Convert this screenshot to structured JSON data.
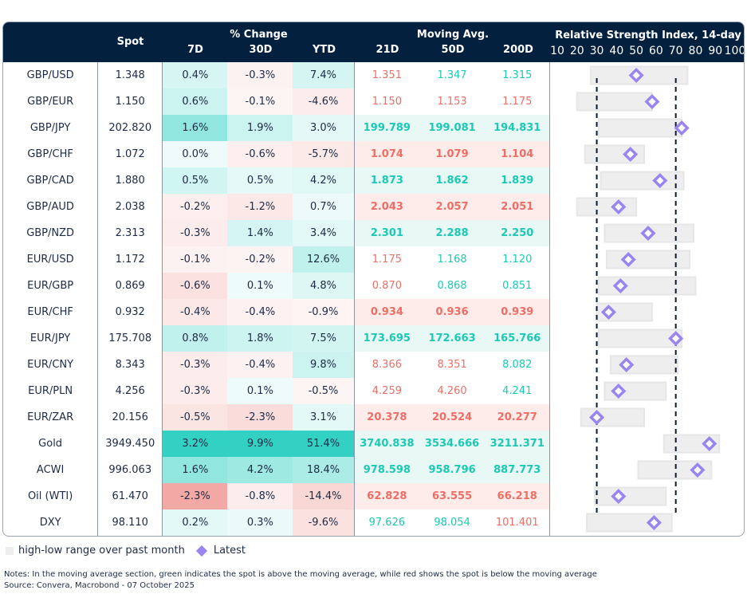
{
  "header": {
    "spot": "Spot",
    "pct_change": "% Change",
    "d7": "7D",
    "d30": "30D",
    "ytd": "YTD",
    "moving_avg": "Moving Avg.",
    "ma21": "21D",
    "ma50": "50D",
    "ma200": "200D",
    "rsi_title": "Relative Strength Index, 14-day"
  },
  "colors": {
    "header_bg": "#04203f",
    "pos": "#33d1c4",
    "neg": "#ee8a84",
    "ma_green": "#1cc9b4",
    "ma_red": "#ee6e66",
    "diamond": "#9a85f0",
    "range": "#eeeeee"
  },
  "rows": [
    {
      "name": "GBP/USD",
      "spot": "1.348",
      "d7": "0.4%",
      "d30": "-0.3%",
      "ytd": "7.4%",
      "ma21": "1.351",
      "ma50": "1.347",
      "ma200": "1.315",
      "bold": false
    },
    {
      "name": "GBP/EUR",
      "spot": "1.150",
      "d7": "0.6%",
      "d30": "-0.1%",
      "ytd": "-4.6%",
      "ma21": "1.150",
      "ma50": "1.153",
      "ma200": "1.175",
      "bold": false
    },
    {
      "name": "GBP/JPY",
      "spot": "202.820",
      "d7": "1.6%",
      "d30": "1.9%",
      "ytd": "3.0%",
      "ma21": "199.789",
      "ma50": "199.081",
      "ma200": "194.831",
      "bold": true
    },
    {
      "name": "GBP/CHF",
      "spot": "1.072",
      "d7": "0.0%",
      "d30": "-0.6%",
      "ytd": "-5.7%",
      "ma21": "1.074",
      "ma50": "1.079",
      "ma200": "1.104",
      "bold": true
    },
    {
      "name": "GBP/CAD",
      "spot": "1.880",
      "d7": "0.5%",
      "d30": "0.5%",
      "ytd": "4.2%",
      "ma21": "1.873",
      "ma50": "1.862",
      "ma200": "1.839",
      "bold": true
    },
    {
      "name": "GBP/AUD",
      "spot": "2.038",
      "d7": "-0.2%",
      "d30": "-1.2%",
      "ytd": "0.7%",
      "ma21": "2.043",
      "ma50": "2.057",
      "ma200": "2.051",
      "bold": true
    },
    {
      "name": "GBP/NZD",
      "spot": "2.313",
      "d7": "-0.3%",
      "d30": "1.4%",
      "ytd": "3.4%",
      "ma21": "2.301",
      "ma50": "2.288",
      "ma200": "2.250",
      "bold": true
    },
    {
      "name": "EUR/USD",
      "spot": "1.172",
      "d7": "-0.1%",
      "d30": "-0.2%",
      "ytd": "12.6%",
      "ma21": "1.175",
      "ma50": "1.168",
      "ma200": "1.120",
      "bold": false
    },
    {
      "name": "EUR/GBP",
      "spot": "0.869",
      "d7": "-0.6%",
      "d30": "0.1%",
      "ytd": "4.8%",
      "ma21": "0.870",
      "ma50": "0.868",
      "ma200": "0.851",
      "bold": false
    },
    {
      "name": "EUR/CHF",
      "spot": "0.932",
      "d7": "-0.4%",
      "d30": "-0.4%",
      "ytd": "-0.9%",
      "ma21": "0.934",
      "ma50": "0.936",
      "ma200": "0.939",
      "bold": true
    },
    {
      "name": "EUR/JPY",
      "spot": "175.708",
      "d7": "0.8%",
      "d30": "1.8%",
      "ytd": "7.5%",
      "ma21": "173.695",
      "ma50": "172.663",
      "ma200": "165.766",
      "bold": true
    },
    {
      "name": "EUR/CNY",
      "spot": "8.343",
      "d7": "-0.3%",
      "d30": "-0.4%",
      "ytd": "9.8%",
      "ma21": "8.366",
      "ma50": "8.351",
      "ma200": "8.082",
      "bold": false
    },
    {
      "name": "EUR/PLN",
      "spot": "4.256",
      "d7": "-0.3%",
      "d30": "0.1%",
      "ytd": "-0.5%",
      "ma21": "4.259",
      "ma50": "4.260",
      "ma200": "4.241",
      "bold": false
    },
    {
      "name": "EUR/ZAR",
      "spot": "20.156",
      "d7": "-0.5%",
      "d30": "-2.3%",
      "ytd": "3.1%",
      "ma21": "20.378",
      "ma50": "20.524",
      "ma200": "20.277",
      "bold": true
    },
    {
      "name": "Gold",
      "spot": "3949.450",
      "d7": "3.2%",
      "d30": "9.9%",
      "ytd": "51.4%",
      "ma21": "3740.838",
      "ma50": "3534.666",
      "ma200": "3211.371",
      "bold": true
    },
    {
      "name": "ACWI",
      "spot": "996.063",
      "d7": "1.6%",
      "d30": "4.2%",
      "ytd": "18.4%",
      "ma21": "978.598",
      "ma50": "958.796",
      "ma200": "887.773",
      "bold": true
    },
    {
      "name": "Oil (WTI)",
      "spot": "61.470",
      "d7": "-2.3%",
      "d30": "-0.8%",
      "ytd": "-14.4%",
      "ma21": "62.828",
      "ma50": "63.555",
      "ma200": "66.218",
      "bold": true
    },
    {
      "name": "DXY",
      "spot": "98.110",
      "d7": "0.2%",
      "d30": "0.3%",
      "ytd": "-9.6%",
      "ma21": "97.626",
      "ma50": "98.054",
      "ma200": "101.401",
      "bold": false
    }
  ],
  "chart_data": {
    "type": "range-dot",
    "title": "Relative Strength Index, 14-day",
    "x_ticks": [
      10,
      20,
      30,
      40,
      50,
      60,
      70,
      80,
      90,
      100
    ],
    "xlim": [
      10,
      100
    ],
    "reference_lines": [
      30,
      70
    ],
    "categories": [
      "GBP/USD",
      "GBP/EUR",
      "GBP/JPY",
      "GBP/CHF",
      "GBP/CAD",
      "GBP/AUD",
      "GBP/NZD",
      "EUR/USD",
      "EUR/GBP",
      "EUR/CHF",
      "EUR/JPY",
      "EUR/CNY",
      "EUR/PLN",
      "EUR/ZAR",
      "Gold",
      "ACWI",
      "Oil (WTI)",
      "DXY"
    ],
    "low": [
      27,
      20,
      31,
      24,
      32,
      20,
      34,
      35,
      31,
      30,
      31,
      37,
      34,
      22,
      64,
      51,
      29,
      25
    ],
    "high": [
      76,
      58,
      73,
      54,
      74,
      50,
      79,
      77,
      80,
      58,
      73,
      71,
      65,
      54,
      92,
      88,
      65,
      68
    ],
    "latest": [
      50,
      58,
      73,
      47,
      62,
      41,
      56,
      46,
      42,
      36,
      70,
      45,
      41,
      30,
      87,
      81,
      41,
      59
    ]
  },
  "legend": {
    "range": "high-low range over past month",
    "latest": "Latest"
  },
  "notes": "Notes: In the moving average section, green indicates the spot is above the moving average, while red shows the spot is below the moving average",
  "source": "Source: Convera, Macrobond - 07 October 2025"
}
